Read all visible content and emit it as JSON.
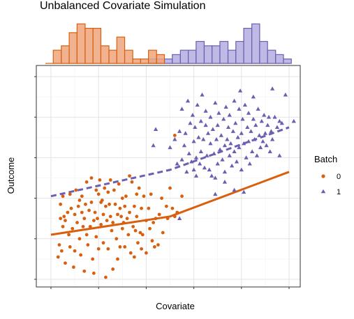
{
  "chart_data": {
    "type": "scatter",
    "title": "Unbalanced Covariate Simulation",
    "xlabel": "Covariate",
    "ylabel": "Outcome",
    "legend": {
      "title": "Batch",
      "position": "right"
    },
    "grid": true,
    "colors": {
      "batch0": "#d95f0e",
      "batch1": "#6a5fb0",
      "hist0_fill": "#eea47c",
      "hist1_fill": "#b3ade0"
    },
    "xlim": [
      0,
      10
    ],
    "ylim": [
      0,
      10
    ],
    "series": [
      {
        "name": "0",
        "marker": "circle",
        "points": [
          [
            0.3,
            1.1
          ],
          [
            0.35,
            1.7
          ],
          [
            0.4,
            3.0
          ],
          [
            0.4,
            3.7
          ],
          [
            0.45,
            1.4
          ],
          [
            0.5,
            2.6
          ],
          [
            0.5,
            4.1
          ],
          [
            0.55,
            3.1
          ],
          [
            0.6,
            2.9
          ],
          [
            0.6,
            0.8
          ],
          [
            0.7,
            3.3
          ],
          [
            0.75,
            2.2
          ],
          [
            0.8,
            4.2
          ],
          [
            0.8,
            1.6
          ],
          [
            0.85,
            3.5
          ],
          [
            0.9,
            2.5
          ],
          [
            0.95,
            0.6
          ],
          [
            1.0,
            3.2
          ],
          [
            1.0,
            1.4
          ],
          [
            1.05,
            4.4
          ],
          [
            1.1,
            2.8
          ],
          [
            1.15,
            3.6
          ],
          [
            1.2,
            3.9
          ],
          [
            1.2,
            2.0
          ],
          [
            1.25,
            1.2
          ],
          [
            1.3,
            3.3
          ],
          [
            1.3,
            4.1
          ],
          [
            1.35,
            2.6
          ],
          [
            1.4,
            3.0
          ],
          [
            1.4,
            0.4
          ],
          [
            1.45,
            3.7
          ],
          [
            1.5,
            2.2
          ],
          [
            1.5,
            4.8
          ],
          [
            1.55,
            1.7
          ],
          [
            1.6,
            3.4
          ],
          [
            1.65,
            2.6
          ],
          [
            1.7,
            5.0
          ],
          [
            1.7,
            3.8
          ],
          [
            1.75,
            1.0
          ],
          [
            1.8,
            2.9
          ],
          [
            1.8,
            0.3
          ],
          [
            1.85,
            3.3
          ],
          [
            1.9,
            4.4
          ],
          [
            1.9,
            2.1
          ],
          [
            1.95,
            3.0
          ],
          [
            2.0,
            4.2
          ],
          [
            2.0,
            1.5
          ],
          [
            2.05,
            4.9
          ],
          [
            2.1,
            3.8
          ],
          [
            2.1,
            2.7
          ],
          [
            2.15,
            3.9
          ],
          [
            2.2,
            3.2
          ],
          [
            2.2,
            1.8
          ],
          [
            2.25,
            4.5
          ],
          [
            2.3,
            3.6
          ],
          [
            2.3,
            0.1
          ],
          [
            2.35,
            2.9
          ],
          [
            2.4,
            4.3
          ],
          [
            2.4,
            1.5
          ],
          [
            2.45,
            3.7
          ],
          [
            2.5,
            3.1
          ],
          [
            2.5,
            4.9
          ],
          [
            2.55,
            2.4
          ],
          [
            2.6,
            2.8
          ],
          [
            2.6,
            0.5
          ],
          [
            2.65,
            4.4
          ],
          [
            2.7,
            3.7
          ],
          [
            2.75,
            2.0
          ],
          [
            2.8,
            3.2
          ],
          [
            2.8,
            1.0
          ],
          [
            2.85,
            4.7
          ],
          [
            2.9,
            3.5
          ],
          [
            2.9,
            1.6
          ],
          [
            2.95,
            3.1
          ],
          [
            3.0,
            4.0
          ],
          [
            3.0,
            2.5
          ],
          [
            3.05,
            2.8
          ],
          [
            3.1,
            3.6
          ],
          [
            3.1,
            1.6
          ],
          [
            3.15,
            4.1
          ],
          [
            3.2,
            3.0
          ],
          [
            3.25,
            2.2
          ],
          [
            3.3,
            5.1
          ],
          [
            3.3,
            3.3
          ],
          [
            3.35,
            1.3
          ],
          [
            3.4,
            4.8
          ],
          [
            3.45,
            2.6
          ],
          [
            3.5,
            3.6
          ],
          [
            3.5,
            1.1
          ],
          [
            3.55,
            2.4
          ],
          [
            3.6,
            4.2
          ],
          [
            3.6,
            3.1
          ],
          [
            3.65,
            1.8
          ],
          [
            3.7,
            4.5
          ],
          [
            3.75,
            2.3
          ],
          [
            3.8,
            3.5
          ],
          [
            3.8,
            1.5
          ],
          [
            3.85,
            2.2
          ],
          [
            3.9,
            4.1
          ],
          [
            4.0,
            2.9
          ],
          [
            4.0,
            1.3
          ],
          [
            4.1,
            3.5
          ],
          [
            4.15,
            2.5
          ],
          [
            4.2,
            4.2
          ],
          [
            4.25,
            1.9
          ],
          [
            4.3,
            2.8
          ],
          [
            4.35,
            1.6
          ],
          [
            4.4,
            3.0
          ],
          [
            4.5,
            1.7
          ],
          [
            4.55,
            3.2
          ],
          [
            4.65,
            4.0
          ],
          [
            4.7,
            2.3
          ],
          [
            4.85,
            3.6
          ],
          [
            4.9,
            3.0
          ],
          [
            5.0,
            4.5
          ],
          [
            5.1,
            3.5
          ],
          [
            5.2,
            3.1
          ],
          [
            5.3,
            3.3
          ],
          [
            5.5,
            4.1
          ],
          [
            5.2,
            7.1
          ]
        ]
      },
      {
        "name": "1",
        "marker": "triangle",
        "points": [
          [
            4.3,
            6.6
          ],
          [
            4.4,
            7.4
          ],
          [
            5.0,
            6.5
          ],
          [
            5.2,
            6.9
          ],
          [
            5.3,
            5.7
          ],
          [
            5.4,
            7.3
          ],
          [
            5.5,
            8.4
          ],
          [
            5.5,
            5.9
          ],
          [
            5.6,
            6.6
          ],
          [
            5.65,
            7.2
          ],
          [
            5.7,
            5.3
          ],
          [
            5.75,
            8.8
          ],
          [
            5.8,
            6.2
          ],
          [
            5.85,
            7.7
          ],
          [
            5.9,
            5.8
          ],
          [
            5.95,
            8.1
          ],
          [
            6.0,
            6.8
          ],
          [
            6.0,
            5.4
          ],
          [
            6.05,
            7.5
          ],
          [
            6.1,
            6.0
          ],
          [
            6.15,
            8.6
          ],
          [
            6.2,
            7.0
          ],
          [
            6.25,
            5.7
          ],
          [
            6.3,
            7.8
          ],
          [
            6.3,
            6.3
          ],
          [
            6.35,
            9.1
          ],
          [
            6.4,
            6.9
          ],
          [
            6.45,
            5.5
          ],
          [
            6.5,
            7.6
          ],
          [
            6.5,
            8.3
          ],
          [
            6.55,
            6.1
          ],
          [
            6.6,
            7.2
          ],
          [
            6.65,
            5.4
          ],
          [
            6.7,
            6.7
          ],
          [
            6.7,
            8.0
          ],
          [
            6.75,
            5.1
          ],
          [
            6.8,
            7.4
          ],
          [
            6.85,
            6.2
          ],
          [
            6.9,
            8.7
          ],
          [
            6.9,
            5.0
          ],
          [
            6.95,
            6.9
          ],
          [
            7.0,
            7.6
          ],
          [
            7.0,
            5.7
          ],
          [
            7.05,
            8.2
          ],
          [
            7.1,
            6.4
          ],
          [
            7.15,
            7.1
          ],
          [
            7.2,
            5.9
          ],
          [
            7.25,
            7.9
          ],
          [
            7.3,
            6.6
          ],
          [
            7.3,
            5.3
          ],
          [
            7.35,
            8.5
          ],
          [
            7.4,
            6.9
          ],
          [
            7.45,
            7.5
          ],
          [
            7.5,
            6.1
          ],
          [
            7.5,
            8.1
          ],
          [
            7.55,
            6.7
          ],
          [
            7.6,
            5.6
          ],
          [
            7.65,
            7.3
          ],
          [
            7.7,
            8.8
          ],
          [
            7.7,
            6.3
          ],
          [
            7.75,
            7.7
          ],
          [
            7.8,
            5.8
          ],
          [
            7.85,
            7.0
          ],
          [
            7.9,
            8.4
          ],
          [
            7.9,
            6.5
          ],
          [
            7.95,
            9.3
          ],
          [
            8.0,
            7.2
          ],
          [
            8.0,
            5.4
          ],
          [
            8.05,
            7.9
          ],
          [
            8.1,
            6.7
          ],
          [
            8.15,
            8.6
          ],
          [
            8.2,
            6.0
          ],
          [
            8.25,
            7.5
          ],
          [
            8.3,
            6.8
          ],
          [
            8.3,
            8.2
          ],
          [
            8.35,
            5.7
          ],
          [
            8.4,
            7.3
          ],
          [
            8.45,
            6.3
          ],
          [
            8.5,
            7.9
          ],
          [
            8.5,
            9.0
          ],
          [
            8.55,
            6.9
          ],
          [
            8.6,
            7.6
          ],
          [
            8.65,
            6.1
          ],
          [
            8.7,
            8.4
          ],
          [
            8.75,
            7.1
          ],
          [
            8.8,
            6.5
          ],
          [
            8.85,
            7.8
          ],
          [
            8.9,
            6.8
          ],
          [
            8.95,
            8.1
          ],
          [
            9.0,
            7.2
          ],
          [
            9.05,
            6.6
          ],
          [
            9.1,
            7.6
          ],
          [
            9.15,
            8.0
          ],
          [
            9.2,
            6.3
          ],
          [
            9.25,
            7.3
          ],
          [
            9.3,
            6.9
          ],
          [
            9.4,
            8.0
          ],
          [
            9.5,
            7.5
          ],
          [
            9.6,
            7.8
          ],
          [
            9.7,
            7.7
          ],
          [
            9.85,
            9.1
          ],
          [
            10.2,
            7.8
          ],
          [
            9.3,
            9.4
          ],
          [
            9.6,
            6.1
          ],
          [
            8.1,
            4.3
          ],
          [
            6.1,
            5.1
          ],
          [
            7.7,
            4.4
          ],
          [
            7.3,
            4.8
          ],
          [
            6.9,
            4.2
          ],
          [
            5.4,
            3.0
          ]
        ]
      }
    ],
    "trend_lines": [
      {
        "series": "0",
        "style": "solid",
        "points": [
          [
            0,
            2.2
          ],
          [
            5.0,
            3.1
          ],
          [
            10.0,
            5.3
          ]
        ]
      },
      {
        "series": "1",
        "style": "dashed",
        "points": [
          [
            0,
            4.1
          ],
          [
            5.0,
            5.4
          ],
          [
            10.0,
            7.5
          ]
        ]
      }
    ],
    "histograms": {
      "bin_edges": [
        0.0,
        0.33,
        0.67,
        1.0,
        1.33,
        1.67,
        2.0,
        2.33,
        2.67,
        3.0,
        3.33,
        3.67,
        4.0,
        4.33,
        4.67,
        5.0,
        5.33,
        5.67,
        6.0,
        6.33,
        6.67,
        7.0,
        7.33,
        7.67,
        8.0,
        8.33,
        8.67,
        9.0,
        9.33,
        9.67,
        10.0,
        10.33
      ],
      "batch0": [
        0,
        3,
        4,
        7,
        9,
        8,
        8,
        4,
        3,
        6,
        3,
        1,
        1,
        3,
        2,
        0,
        0,
        0,
        0,
        0,
        0,
        0,
        0,
        0,
        0,
        0,
        0,
        0,
        0,
        0,
        0
      ],
      "batch1": [
        0,
        0,
        0,
        0,
        0,
        0,
        0,
        0,
        0,
        0,
        0,
        0,
        0,
        1,
        1,
        1,
        2,
        3,
        3,
        5,
        4,
        4,
        5,
        3,
        5,
        8,
        9,
        5,
        3,
        2,
        1
      ]
    }
  }
}
